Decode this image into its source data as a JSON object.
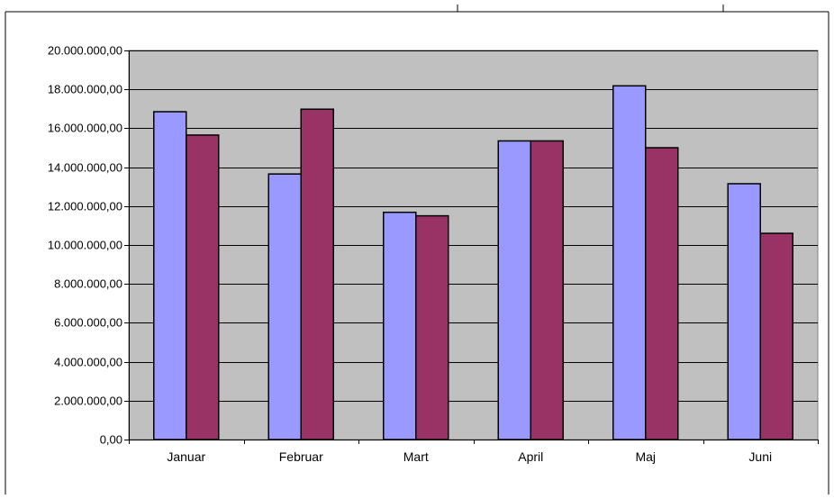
{
  "chart_data": {
    "type": "bar",
    "title": "",
    "xlabel": "",
    "ylabel": "",
    "categories": [
      "Januar",
      "Februar",
      "Mart",
      "April",
      "Maj",
      "Juni"
    ],
    "series": [
      {
        "color": "#9999ff",
        "values": [
          16850000,
          13650000,
          11680000,
          15350000,
          18180000,
          13150000
        ]
      },
      {
        "color": "#993366",
        "values": [
          15650000,
          16980000,
          11500000,
          15350000,
          15000000,
          10600000
        ]
      }
    ],
    "ylim": [
      0,
      20000000
    ],
    "yticks": [
      0,
      2000000,
      4000000,
      6000000,
      8000000,
      10000000,
      12000000,
      14000000,
      16000000,
      18000000,
      20000000
    ],
    "ytick_labels": [
      "0,00",
      "2.000.000,00",
      "4.000.000,00",
      "6.000.000,00",
      "8.000.000,00",
      "10.000.000,00",
      "12.000.000,00",
      "14.000.000,00",
      "16.000.000,00",
      "18.000.000,00",
      "20.000.000,00"
    ],
    "grid": true,
    "legend": "none",
    "plot_background": "#c0c0c0"
  }
}
